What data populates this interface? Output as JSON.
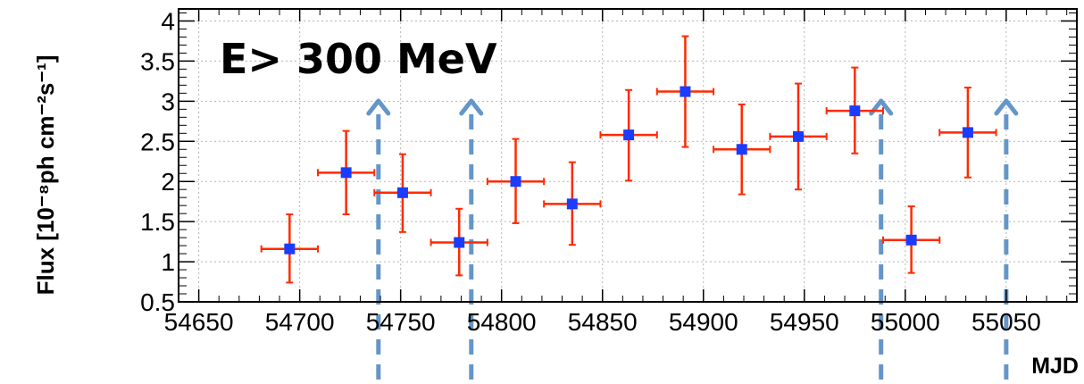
{
  "chart_data": {
    "type": "scatter",
    "title": "",
    "annotation": "E> 300 MeV",
    "xlabel": "MJD",
    "ylabel": "Flux [10⁻⁸ph cm⁻²s⁻¹]",
    "xlim": [
      54640,
      55085
    ],
    "ylim": [
      0.5,
      4.15
    ],
    "grid": true,
    "x_ticks": [
      54650,
      54700,
      54750,
      54800,
      54850,
      54900,
      54950,
      55000,
      55050
    ],
    "y_ticks": [
      0.5,
      1,
      1.5,
      2,
      2.5,
      3,
      3.5,
      4
    ],
    "y_tick_labels": [
      "0.5",
      "1",
      "1.5",
      "2",
      "2.5",
      "3",
      "3.5",
      "4"
    ],
    "series": [
      {
        "name": "",
        "color": "#ff2a00",
        "marker_color": "#1a3cff",
        "points": [
          {
            "x": 54695,
            "y": 1.16,
            "xerr": 14,
            "yerr_low": 0.42,
            "yerr_high": 0.43
          },
          {
            "x": 54723,
            "y": 2.11,
            "xerr": 14,
            "yerr_low": 0.52,
            "yerr_high": 0.52
          },
          {
            "x": 54751,
            "y": 1.86,
            "xerr": 14,
            "yerr_low": 0.49,
            "yerr_high": 0.48
          },
          {
            "x": 54779,
            "y": 1.24,
            "xerr": 14,
            "yerr_low": 0.41,
            "yerr_high": 0.42
          },
          {
            "x": 54807,
            "y": 2.0,
            "xerr": 14,
            "yerr_low": 0.52,
            "yerr_high": 0.53
          },
          {
            "x": 54835,
            "y": 1.72,
            "xerr": 14,
            "yerr_low": 0.51,
            "yerr_high": 0.52
          },
          {
            "x": 54863,
            "y": 2.58,
            "xerr": 14,
            "yerr_low": 0.57,
            "yerr_high": 0.56
          },
          {
            "x": 54891,
            "y": 3.12,
            "xerr": 14,
            "yerr_low": 0.69,
            "yerr_high": 0.69
          },
          {
            "x": 54919,
            "y": 2.4,
            "xerr": 14,
            "yerr_low": 0.56,
            "yerr_high": 0.56
          },
          {
            "x": 54947,
            "y": 2.56,
            "xerr": 14,
            "yerr_low": 0.66,
            "yerr_high": 0.66
          },
          {
            "x": 54975,
            "y": 2.88,
            "xerr": 14,
            "yerr_low": 0.53,
            "yerr_high": 0.54
          },
          {
            "x": 55003,
            "y": 1.27,
            "xerr": 14,
            "yerr_low": 0.41,
            "yerr_high": 0.42
          },
          {
            "x": 55031,
            "y": 2.61,
            "xerr": 14,
            "yerr_low": 0.56,
            "yerr_high": 0.56
          }
        ]
      }
    ],
    "markers": {
      "color": "#6496c8",
      "x": [
        54739,
        54785,
        54988,
        55050
      ]
    }
  }
}
